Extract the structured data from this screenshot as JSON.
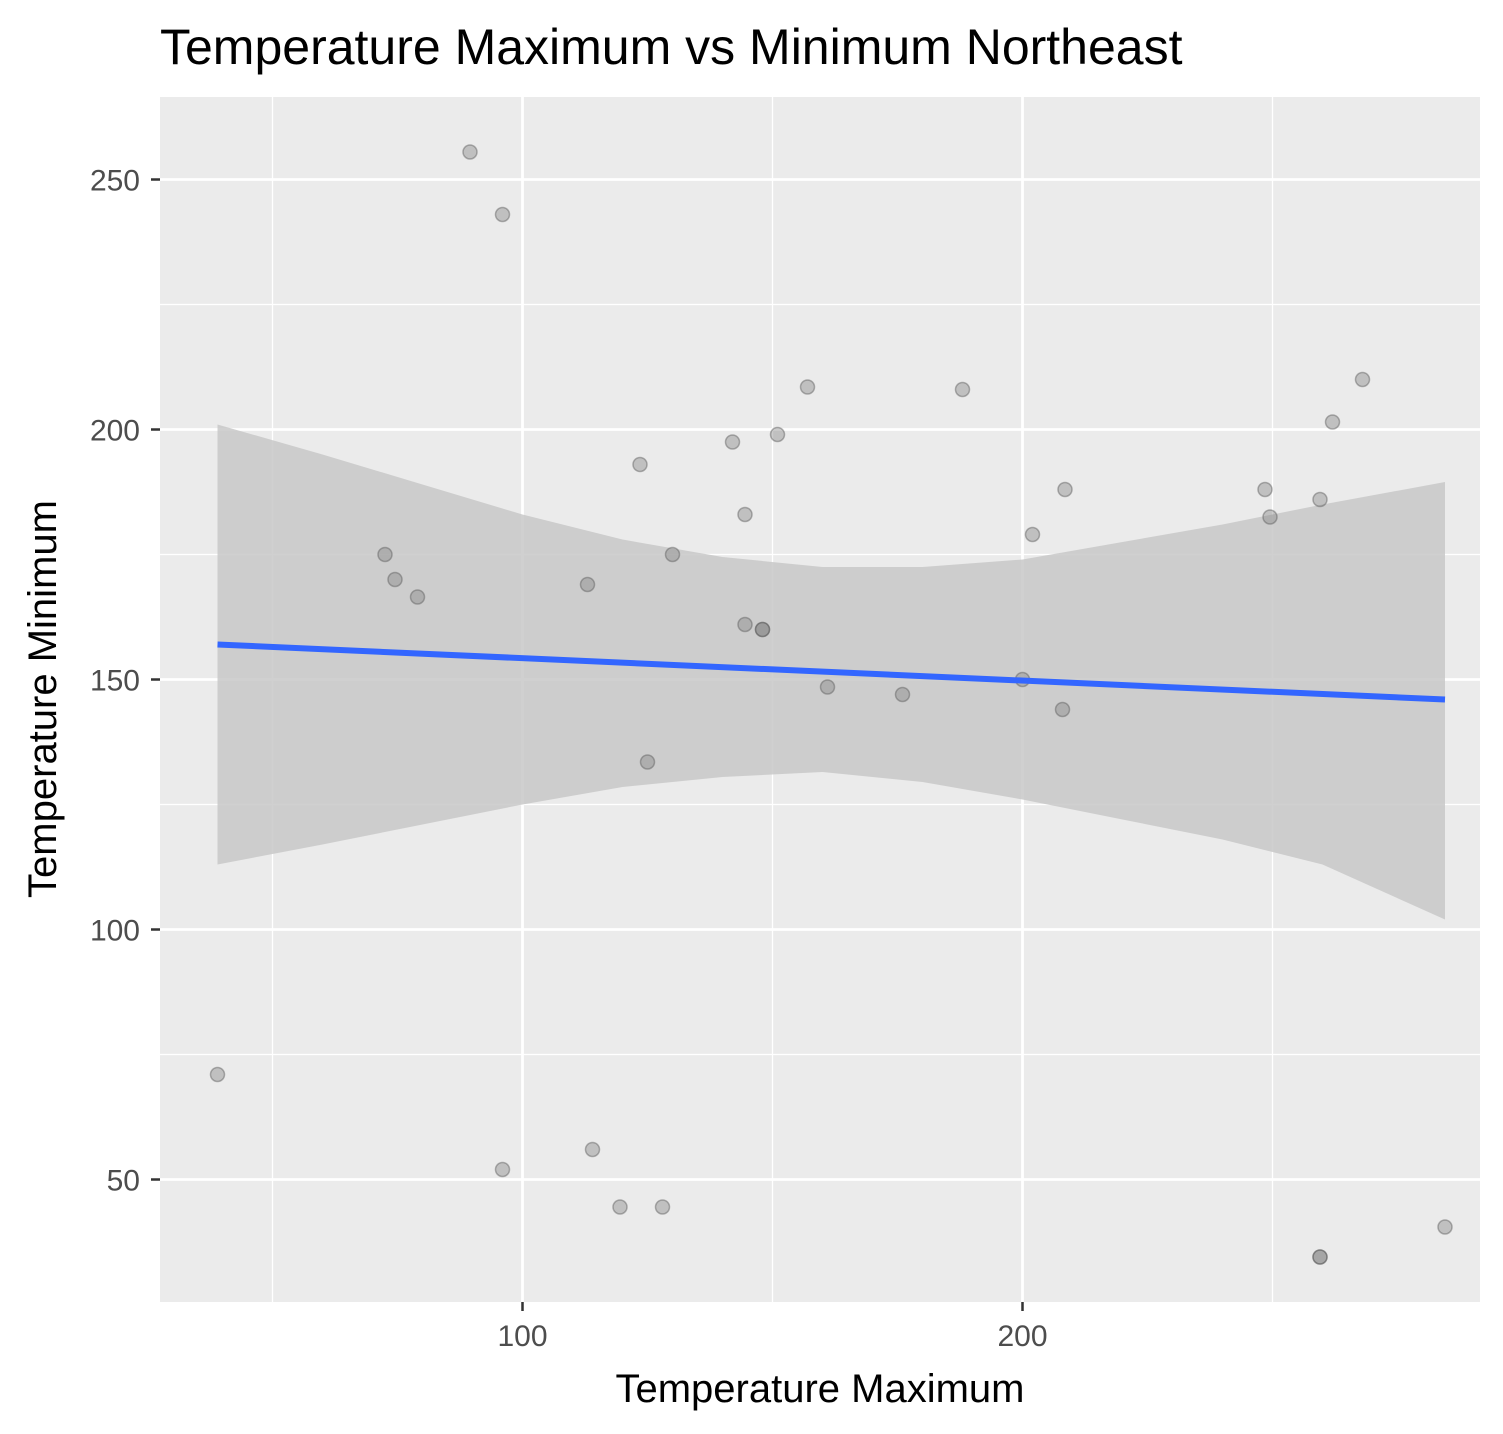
{
  "chart_data": {
    "type": "scatter",
    "title": "Temperature Maximum vs Minimum Northeast",
    "xlabel": "Temperature Maximum",
    "ylabel": "Temperature Minimum",
    "xlim": [
      27.5,
      291.5
    ],
    "ylim": [
      25.5,
      266.5
    ],
    "x_ticks": [
      100,
      200
    ],
    "x_tick_labels": [
      "100",
      "200"
    ],
    "x_minor_ticks": [
      50,
      150,
      250
    ],
    "y_ticks": [
      50,
      100,
      150,
      200,
      250
    ],
    "y_tick_labels": [
      "50",
      "100",
      "150",
      "200",
      "250"
    ],
    "y_minor_ticks": [
      75,
      125,
      175,
      225
    ],
    "grid": true,
    "legend": "none",
    "series": [
      {
        "type": "scatter",
        "color": "#7f7f7f",
        "points": [
          {
            "x": 39,
            "y": 71
          },
          {
            "x": 89.5,
            "y": 255.5
          },
          {
            "x": 96,
            "y": 243
          },
          {
            "x": 96,
            "y": 52
          },
          {
            "x": 72.5,
            "y": 175
          },
          {
            "x": 74.5,
            "y": 170
          },
          {
            "x": 79,
            "y": 166.5
          },
          {
            "x": 113,
            "y": 169
          },
          {
            "x": 114,
            "y": 56
          },
          {
            "x": 119.5,
            "y": 44.5
          },
          {
            "x": 123.5,
            "y": 193
          },
          {
            "x": 125,
            "y": 133.5
          },
          {
            "x": 128,
            "y": 44.5
          },
          {
            "x": 130,
            "y": 175
          },
          {
            "x": 142,
            "y": 197.5
          },
          {
            "x": 144.5,
            "y": 183
          },
          {
            "x": 144.5,
            "y": 161
          },
          {
            "x": 148,
            "y": 160
          },
          {
            "x": 148,
            "y": 160
          },
          {
            "x": 151,
            "y": 199
          },
          {
            "x": 157,
            "y": 208.5
          },
          {
            "x": 161,
            "y": 148.5
          },
          {
            "x": 176,
            "y": 147
          },
          {
            "x": 188,
            "y": 208
          },
          {
            "x": 200,
            "y": 150
          },
          {
            "x": 202,
            "y": 179
          },
          {
            "x": 208,
            "y": 144
          },
          {
            "x": 208.5,
            "y": 188
          },
          {
            "x": 248.5,
            "y": 188
          },
          {
            "x": 249.5,
            "y": 182.5
          },
          {
            "x": 259.5,
            "y": 186
          },
          {
            "x": 262,
            "y": 201.5
          },
          {
            "x": 268,
            "y": 210
          },
          {
            "x": 259.5,
            "y": 34.5
          },
          {
            "x": 259.5,
            "y": 34.5
          },
          {
            "x": 284.5,
            "y": 40.5
          }
        ]
      },
      {
        "type": "line",
        "color": "#3366ff",
        "method": "linear fit",
        "x": [
          39,
          284.5
        ],
        "y": [
          157,
          146
        ]
      },
      {
        "type": "band",
        "color": "#c8c8c8",
        "x": [
          39,
          60,
          80,
          100,
          120,
          140,
          160,
          180,
          200,
          220,
          240,
          260,
          284.5
        ],
        "upper": [
          201,
          195,
          189,
          183,
          178,
          174.5,
          172.5,
          172.5,
          174,
          177.5,
          181,
          185,
          189.5
        ],
        "lower": [
          113,
          117,
          121,
          125,
          128.5,
          130.5,
          131.5,
          129.5,
          126,
          122,
          118,
          113,
          102
        ]
      }
    ]
  }
}
